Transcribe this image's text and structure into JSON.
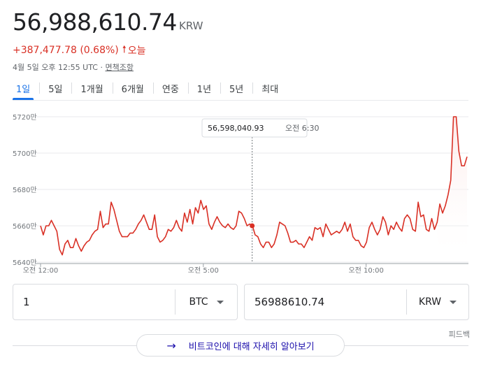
{
  "header": {
    "price": "56,988,610.74",
    "currency": "KRW",
    "change": "+387,477.78 (0.68%)",
    "change_arrow_icon": "arrow-up-icon",
    "change_period": "오늘",
    "timestamp": "4월 5일 오후 12:55 UTC ·",
    "disclaimer_link": "면책조항"
  },
  "tabs": [
    {
      "label": "1일",
      "active": true
    },
    {
      "label": "5일"
    },
    {
      "label": "1개월"
    },
    {
      "label": "6개월"
    },
    {
      "label": "연중"
    },
    {
      "label": "1년"
    },
    {
      "label": "5년"
    },
    {
      "label": "최대"
    }
  ],
  "chart_data": {
    "type": "line",
    "y_ticks": [
      "5720만",
      "5700만",
      "5680만",
      "5660만",
      "5640만"
    ],
    "y_tick_values": [
      57200000,
      57000000,
      56800000,
      56600000,
      56400000
    ],
    "x_ticks": [
      "오전 12:00",
      "오전 5:00",
      "오전 10:00"
    ],
    "x_tick_hours": [
      0,
      5,
      10
    ],
    "tooltip": {
      "value": "56,598,040.93",
      "time": "오전 6:30",
      "hour": 6.5
    },
    "colors": {
      "line": "#d93025",
      "fill": "#fce8e6"
    },
    "series": [
      {
        "values": [
          56600000,
          56550000,
          56600000,
          56600000,
          56630000,
          56600000,
          56570000,
          56470000,
          56440000,
          56500000,
          56520000,
          56480000,
          56480000,
          56530000,
          56490000,
          56460000,
          56490000,
          56510000,
          56520000,
          56550000,
          56570000,
          56580000,
          56680000,
          56590000,
          56610000,
          56610000,
          56730000,
          56690000,
          56630000,
          56570000,
          56540000,
          56540000,
          56540000,
          56560000,
          56560000,
          56580000,
          56610000,
          56630000,
          56660000,
          56620000,
          56580000,
          56580000,
          56660000,
          56540000,
          56510000,
          56520000,
          56540000,
          56580000,
          56570000,
          56590000,
          56630000,
          56590000,
          56570000,
          56670000,
          56620000,
          56690000,
          56610000,
          56700000,
          56670000,
          56740000,
          56690000,
          56710000,
          56610000,
          56580000,
          56620000,
          56650000,
          56620000,
          56600000,
          56590000,
          56610000,
          56590000,
          56580000,
          56600000,
          56680000,
          56670000,
          56640000,
          56600000,
          56610000,
          56600000,
          56550000,
          56540000,
          56500000,
          56480000,
          56510000,
          56510000,
          56480000,
          56500000,
          56550000,
          56620000,
          56610000,
          56600000,
          56560000,
          56510000,
          56510000,
          56520000,
          56500000,
          56500000,
          56480000,
          56510000,
          56540000,
          56520000,
          56590000,
          56580000,
          56590000,
          56540000,
          56610000,
          56580000,
          56550000,
          56560000,
          56570000,
          56560000,
          56580000,
          56620000,
          56570000,
          56610000,
          56540000,
          56520000,
          56520000,
          56490000,
          56480000,
          56510000,
          56590000,
          56620000,
          56580000,
          56550000,
          56580000,
          56650000,
          56620000,
          56550000,
          56600000,
          56580000,
          56620000,
          56590000,
          56570000,
          56640000,
          56660000,
          56640000,
          56580000,
          56570000,
          56730000,
          56650000,
          56660000,
          56580000,
          56570000,
          56640000,
          56580000,
          56620000,
          56720000,
          56670000,
          56710000,
          56770000,
          56850000,
          57200000,
          57200000,
          57010000,
          56930000,
          56930000,
          56980000
        ]
      }
    ]
  },
  "converter": {
    "from_value": "1",
    "from_currency": "BTC",
    "to_value": "56988610.74",
    "to_currency": "KRW"
  },
  "feedback": "피드백",
  "learn_more": "비트코인에 대해 자세히 알아보기"
}
